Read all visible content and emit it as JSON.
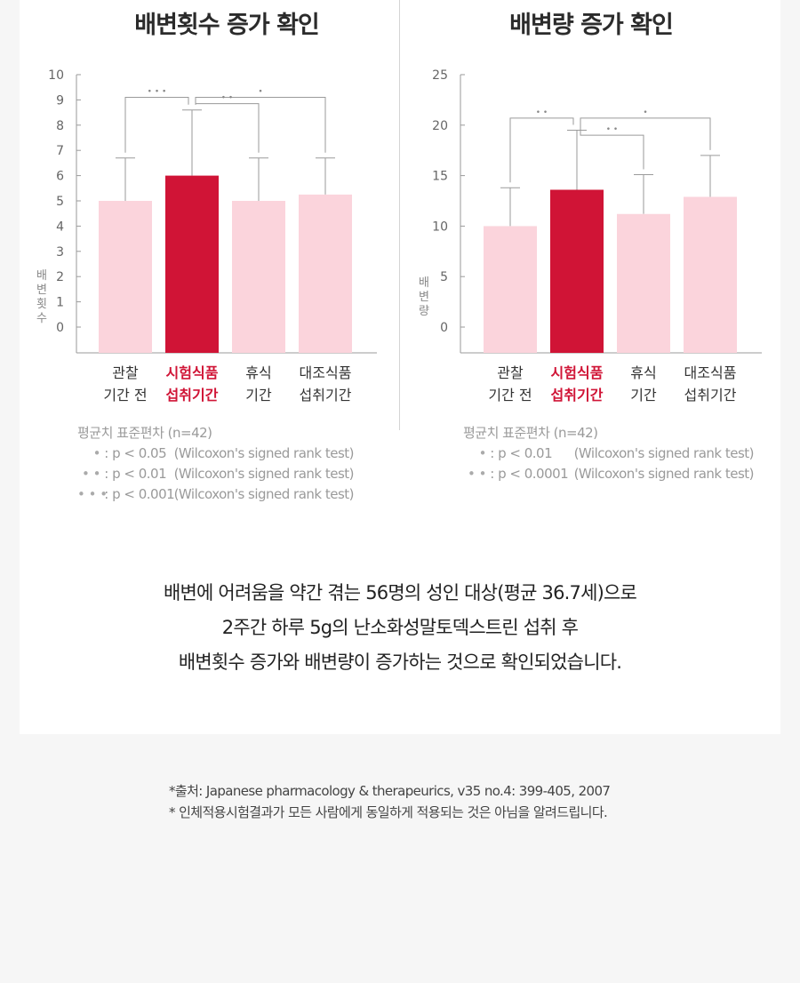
{
  "colors": {
    "highlight": "#d01436",
    "pale": "#fbd4dc",
    "axis": "#9a9a9a",
    "errorbar": "#9a9a9a"
  },
  "chart_data": [
    {
      "type": "bar",
      "title": "배변횟수 증가 확인",
      "ylabel": "배변횟수",
      "ylim": [
        0,
        10
      ],
      "yticks": [
        "0",
        "1",
        "2",
        "3",
        "4",
        "5",
        "6",
        "7",
        "8",
        "9",
        "10"
      ],
      "categories": [
        {
          "line1": "관찰",
          "line2": "기간 전",
          "highlight": false
        },
        {
          "line1": "시험식품",
          "line2": "섭취기간",
          "highlight": true
        },
        {
          "line1": "휴식",
          "line2": "기간",
          "highlight": false
        },
        {
          "line1": "대조식품",
          "line2": "섭취기간",
          "highlight": false
        }
      ],
      "values": [
        5.0,
        6.0,
        5.0,
        5.25
      ],
      "errors": [
        1.7,
        2.6,
        1.7,
        1.45
      ],
      "significance": [
        {
          "from": 0,
          "to": 1,
          "mark": "• • •",
          "y": 9.1
        },
        {
          "from": 1,
          "to": 3,
          "mark": "•",
          "y": 9.1
        },
        {
          "from": 1,
          "to": 2,
          "mark": "• •",
          "y": 8.85
        }
      ],
      "legend": {
        "title": "평균치 표준편차 (n=42)",
        "rows": [
          {
            "mark": "•",
            "p": ": p < 0.05",
            "test": "(Wilcoxon's signed rank test)"
          },
          {
            "mark": "• •",
            "p": ": p < 0.01",
            "test": "(Wilcoxon's signed rank test)"
          },
          {
            "mark": "• • •",
            "p": ": p < 0.001",
            "test": "(Wilcoxon's signed rank test)"
          }
        ]
      }
    },
    {
      "type": "bar",
      "title": "배변량 증가 확인",
      "ylabel": "배변량",
      "ylim": [
        0,
        25
      ],
      "yticks": [
        "0",
        "5",
        "10",
        "15",
        "20",
        "25"
      ],
      "categories": [
        {
          "line1": "관찰",
          "line2": "기간 전",
          "highlight": false
        },
        {
          "line1": "시험식품",
          "line2": "섭취기간",
          "highlight": true
        },
        {
          "line1": "휴식",
          "line2": "기간",
          "highlight": false
        },
        {
          "line1": "대조식품",
          "line2": "섭취기간",
          "highlight": false
        }
      ],
      "values": [
        10.0,
        13.6,
        11.2,
        12.9
      ],
      "errors": [
        3.8,
        5.9,
        3.9,
        4.1
      ],
      "significance": [
        {
          "from": 0,
          "to": 1,
          "mark": "• •",
          "y": 20.7
        },
        {
          "from": 1,
          "to": 3,
          "mark": "•",
          "y": 20.7
        },
        {
          "from": 1,
          "to": 2,
          "mark": "• •",
          "y": 19.0
        }
      ],
      "legend": {
        "title": "평균치 표준편차 (n=42)",
        "rows": [
          {
            "mark": "•",
            "p": ": p < 0.01",
            "test": "(Wilcoxon's signed rank test)"
          },
          {
            "mark": "• •",
            "p": ": p < 0.0001",
            "test": "(Wilcoxon's signed rank test)"
          }
        ]
      }
    }
  ],
  "summary": {
    "line1": "배변에 어려움을 약간 겪는 56명의 성인 대상(평균 36.7세)으로",
    "line2": "2주간 하루 5g의 난소화성말토덱스트린 섭취 후",
    "line3": "배변횟수 증가와 배변량이 증가하는 것으로 확인되었습니다."
  },
  "footnotes": {
    "source": "*출처: Japanese pharmacology & therapeurics, v35 no.4: 399-405, 2007",
    "disclaimer": "* 인체적용시험결과가 모든 사람에게 동일하게 적용되는 것은 아님을 알려드립니다."
  }
}
